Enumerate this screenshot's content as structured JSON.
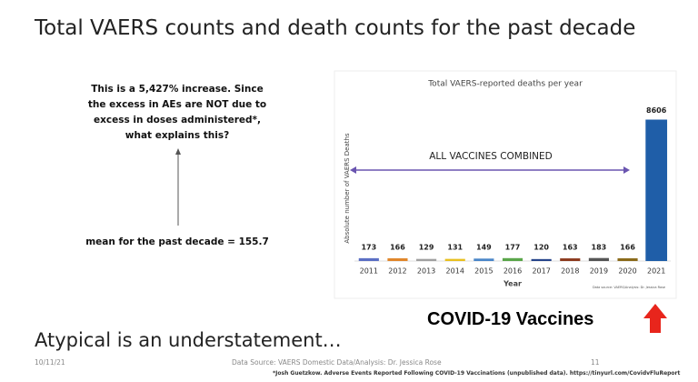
{
  "slide": {
    "title": "Total VAERS counts and death counts for the past decade",
    "note": "This is a 5,427% increase. Since the excess in AEs are NOT due to excess in doses administered*, what explains this?",
    "mean_note": "mean for the past decade = 155.7",
    "subtitle": "Atypical is an understatement…",
    "date": "10/11/21",
    "source": "Data Source: VAERS Domestic Data/Analysis: Dr. Jessica Rose",
    "page": "11",
    "footnote": "*Josh Guetzkow. Adverse Events Reported Following COVID-19 Vaccinations (unpublished data). https://tinyurl.com/CovidvFluReport",
    "callout": "COVID-19 Vaccines"
  },
  "chart_data": {
    "type": "bar",
    "title": "Total VAERS-reported deaths per year",
    "x_label": "Year",
    "y_label": "Absolute number of VAERS Deaths",
    "annotation": "ALL VACCINES COMBINED",
    "credit": "Data source: VAERS/Analysis: Dr. Jessica Rose",
    "categories": [
      "2011",
      "2012",
      "2013",
      "2014",
      "2015",
      "2016",
      "2017",
      "2018",
      "2019",
      "2020",
      "2021"
    ],
    "values": [
      173,
      166,
      129,
      131,
      149,
      177,
      120,
      163,
      183,
      166,
      8606
    ],
    "colors": [
      "#5b6fc4",
      "#e0862b",
      "#a0a0a0",
      "#e8c020",
      "#4a86c8",
      "#5aa64a",
      "#26448a",
      "#8c3a1e",
      "#555555",
      "#8a6a1a",
      "#1f5ea8"
    ],
    "ylim": [
      0,
      8800
    ]
  }
}
